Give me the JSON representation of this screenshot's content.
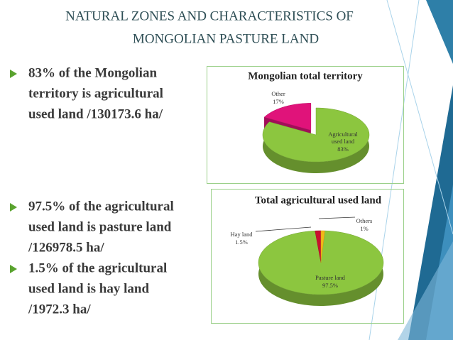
{
  "slide": {
    "title": [
      "NATURAL ZONES AND CHARACTERISTICS OF",
      "MONGOLIAN PASTURE LAND"
    ],
    "bullets": [
      [
        "83% of  the Mongolian",
        "territory is agricultural",
        "used land /130173.6 ha/"
      ],
      [
        "97.5% of  the agricultural",
        "used land is pasture land",
        "/126978.5 ha/"
      ],
      [
        "1.5%  of the agricultural",
        "used land is hay land",
        "/1972.3 ha/"
      ]
    ]
  },
  "chart_data": [
    {
      "type": "pie",
      "title": "Mongolian total territory",
      "categories": [
        "Agricultural used land",
        "Other"
      ],
      "values": [
        83,
        17
      ],
      "value_labels": [
        "83%",
        "17%"
      ],
      "colors": [
        "#8cc63f",
        "#e0137a"
      ]
    },
    {
      "type": "pie",
      "title": "Total agricultural used land",
      "categories": [
        "Pasture land",
        "Hay land",
        "Others"
      ],
      "values": [
        97.5,
        1.5,
        1
      ],
      "value_labels": [
        "97.5%",
        "1.5%",
        "1%"
      ],
      "colors": [
        "#8cc63f",
        "#c8102e",
        "#f2b818"
      ]
    }
  ]
}
